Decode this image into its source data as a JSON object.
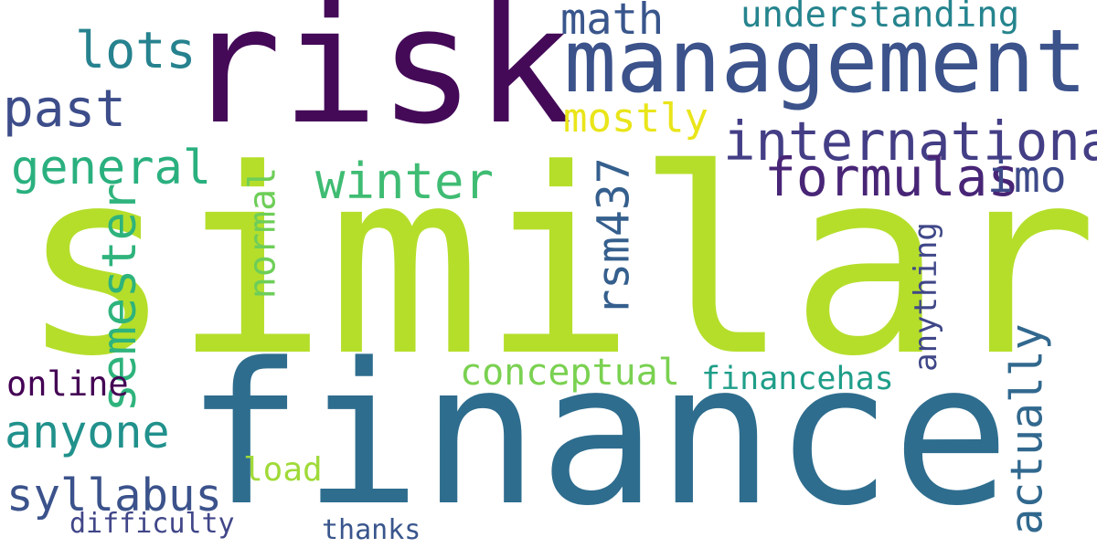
{
  "words": [
    {
      "text": "similar",
      "color": "#b5de2b"
    },
    {
      "text": "finance",
      "color": "#2e6d8e"
    },
    {
      "text": "risk",
      "color": "#440a58"
    },
    {
      "text": "management",
      "color": "#3b528b"
    },
    {
      "text": "international",
      "color": "#433e85"
    },
    {
      "text": "formulas",
      "color": "#482576"
    },
    {
      "text": "imo",
      "color": "#3e4a89"
    },
    {
      "text": "winter",
      "color": "#3fbc73"
    },
    {
      "text": "general",
      "color": "#2ab07f"
    },
    {
      "text": "math",
      "color": "#39568c"
    },
    {
      "text": "lots",
      "color": "#26828e"
    },
    {
      "text": "past",
      "color": "#3d4d8a"
    },
    {
      "text": "mostly",
      "color": "#e9e51a"
    },
    {
      "text": "understanding",
      "color": "#25848e"
    },
    {
      "text": "semester",
      "color": "#2eb37c"
    },
    {
      "text": "normal",
      "color": "#6ece58"
    },
    {
      "text": "rsm437",
      "color": "#355f8d"
    },
    {
      "text": "anything",
      "color": "#3f4788"
    },
    {
      "text": "actually",
      "color": "#31688e"
    },
    {
      "text": "conceptual",
      "color": "#7ad151"
    },
    {
      "text": "financehas",
      "color": "#1f9e89"
    },
    {
      "text": "online",
      "color": "#440154"
    },
    {
      "text": "anyone",
      "color": "#21918c"
    },
    {
      "text": "syllabus",
      "color": "#3b528b"
    },
    {
      "text": "load",
      "color": "#a0da39"
    },
    {
      "text": "difficulty",
      "color": "#404688"
    },
    {
      "text": "thanks",
      "color": "#39568c"
    }
  ]
}
